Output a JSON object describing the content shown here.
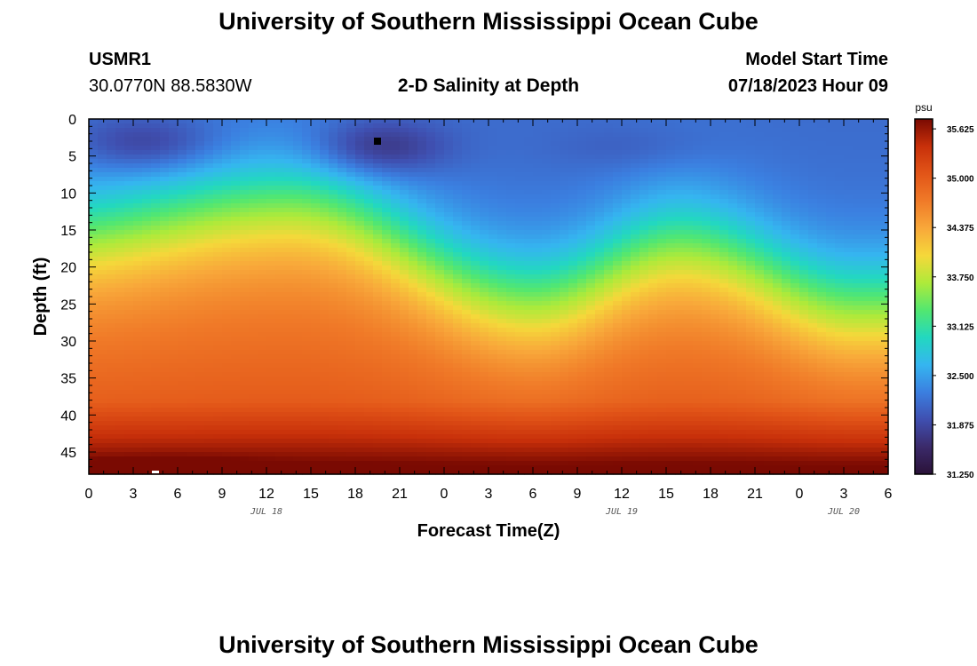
{
  "page": {
    "title_top": "University of Southern Mississippi Ocean Cube",
    "title_bottom": "University of Southern Mississippi Ocean Cube",
    "station": "USMR1",
    "coords": "30.0770N  88.5830W",
    "subtitle": "2-D Salinity at Depth",
    "model_label": "Model Start Time",
    "model_time": "07/18/2023 Hour 09"
  },
  "chart_data": {
    "type": "heatmap",
    "title": "2-D Salinity at Depth",
    "xlabel": "Forecast Time(Z)",
    "ylabel": "Depth (ft)",
    "x_range_hours": [
      0,
      54
    ],
    "x_tick_labels": [
      "0",
      "3",
      "6",
      "9",
      "12",
      "15",
      "18",
      "21",
      "0",
      "3",
      "6",
      "9",
      "12",
      "15",
      "18",
      "21",
      "0",
      "3",
      "6"
    ],
    "date_labels": [
      {
        "label": "JUL 18",
        "hour": 12
      },
      {
        "label": "JUL 19",
        "hour": 36
      },
      {
        "label": "JUL 20",
        "hour": 51
      }
    ],
    "y_range_ft": [
      0,
      48
    ],
    "y_ticks": [
      0,
      5,
      10,
      15,
      20,
      25,
      30,
      35,
      40,
      45
    ],
    "colorbar": {
      "unit": "psu",
      "min": 31.25,
      "max": 35.75,
      "labels": [
        "35.625",
        "35.000",
        "34.375",
        "33.750",
        "33.125",
        "32.500",
        "31.875",
        "31.250"
      ],
      "colors": [
        "#2a1238",
        "#3b2a6a",
        "#3f4fb0",
        "#3b7fe0",
        "#35b5f0",
        "#22d8c0",
        "#52e770",
        "#aeea3a",
        "#f5d83a",
        "#f8a83a",
        "#f07a28",
        "#e25518",
        "#c8300a",
        "#7a0a02"
      ]
    },
    "markers": [
      {
        "hour": 19.5,
        "depth_ft": 3,
        "color": "#000000"
      },
      {
        "hour": 4.5,
        "depth_ft": 48,
        "color": "#ffffff"
      }
    ],
    "thermocline_wave_hours": [
      13.5,
      30,
      40,
      52
    ],
    "thermocline_wave_depth_ft": [
      10.5,
      23,
      16,
      24
    ]
  }
}
